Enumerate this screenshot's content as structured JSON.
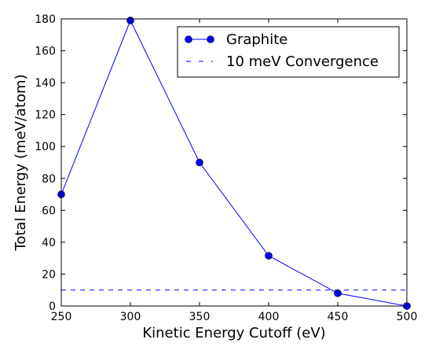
{
  "chart_data": {
    "type": "line",
    "title": "",
    "xlabel": "Kinetic Energy Cutoff (eV)",
    "ylabel": "Total Energy (meV/atom)",
    "xlim": [
      250,
      500
    ],
    "ylim": [
      0,
      180
    ],
    "x_ticks": [
      250,
      300,
      350,
      400,
      450,
      500
    ],
    "y_ticks": [
      0,
      20,
      40,
      60,
      80,
      100,
      120,
      140,
      160,
      180
    ],
    "grid": false,
    "legend_position": "top-right",
    "series": [
      {
        "name": "Graphite",
        "style": "solid line with circle markers",
        "color": "#0000ff",
        "x": [
          250,
          300,
          350,
          400,
          450,
          500
        ],
        "y": [
          70,
          179,
          90,
          31.5,
          8,
          0
        ]
      }
    ],
    "reference_lines": [
      {
        "name": "10 meV Convergence",
        "style": "dashed",
        "color": "#0000ff",
        "y": 10
      }
    ]
  }
}
